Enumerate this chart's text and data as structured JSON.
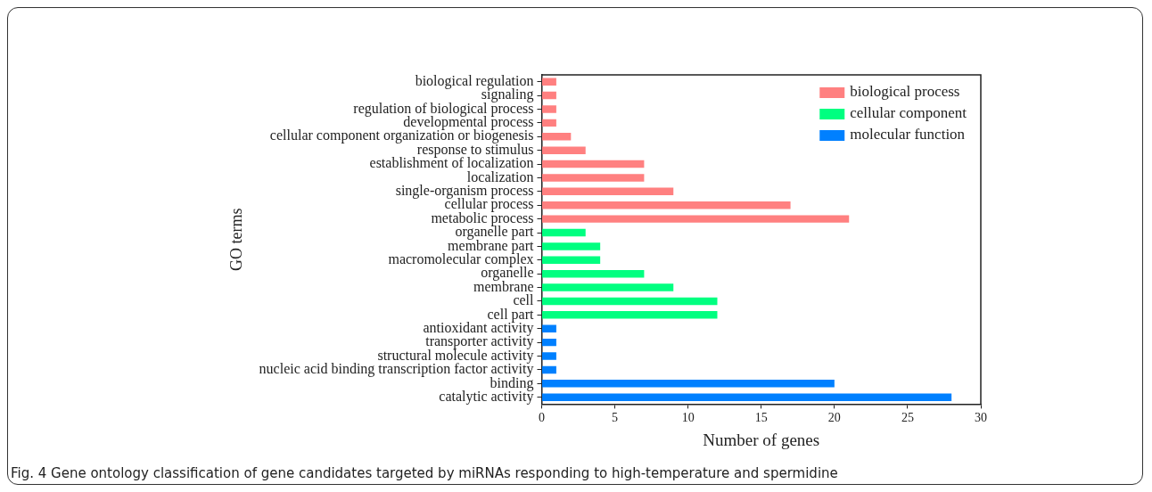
{
  "chart_data": {
    "type": "bar",
    "orientation": "horizontal",
    "xlabel": "Number of genes",
    "ylabel": "GO terms",
    "categories": [
      "biological regulation",
      "signaling",
      "regulation of biological process",
      "developmental process",
      "cellular component organization or biogenesis",
      "response to stimulus",
      "establishment of localization",
      "localization",
      "single-organism process",
      "cellular process",
      "metabolic process",
      "organelle part",
      "membrane part",
      "macromolecular complex",
      "organelle",
      "membrane",
      "cell",
      "cell part",
      "antioxidant activity",
      "transporter activity",
      "structural molecule activity",
      "nucleic acid binding transcription factor activity",
      "binding",
      "catalytic activity"
    ],
    "series": [
      {
        "name": "biological process",
        "color": "#ff8080",
        "values": [
          1,
          1,
          1,
          1,
          2,
          3,
          7,
          7,
          9,
          17,
          21,
          null,
          null,
          null,
          null,
          null,
          null,
          null,
          null,
          null,
          null,
          null,
          null,
          null
        ]
      },
      {
        "name": "cellular component",
        "color": "#00ff80",
        "values": [
          null,
          null,
          null,
          null,
          null,
          null,
          null,
          null,
          null,
          null,
          null,
          3,
          4,
          4,
          7,
          9,
          12,
          12,
          null,
          null,
          null,
          null,
          null,
          null
        ]
      },
      {
        "name": "molecular function",
        "color": "#0080ff",
        "values": [
          null,
          null,
          null,
          null,
          null,
          null,
          null,
          null,
          null,
          null,
          null,
          null,
          null,
          null,
          null,
          null,
          null,
          null,
          1,
          1,
          1,
          1,
          20,
          28
        ]
      }
    ],
    "xlim": [
      0,
      30
    ],
    "xticks": [
      0,
      5,
      10,
      15,
      20,
      25,
      30
    ],
    "grid": false,
    "legend": "top right",
    "annotations": [
      "Fig. 4 Gene ontology classification of gene candidates targeted by miRNAs responding to high-temperature and spermidine"
    ]
  }
}
